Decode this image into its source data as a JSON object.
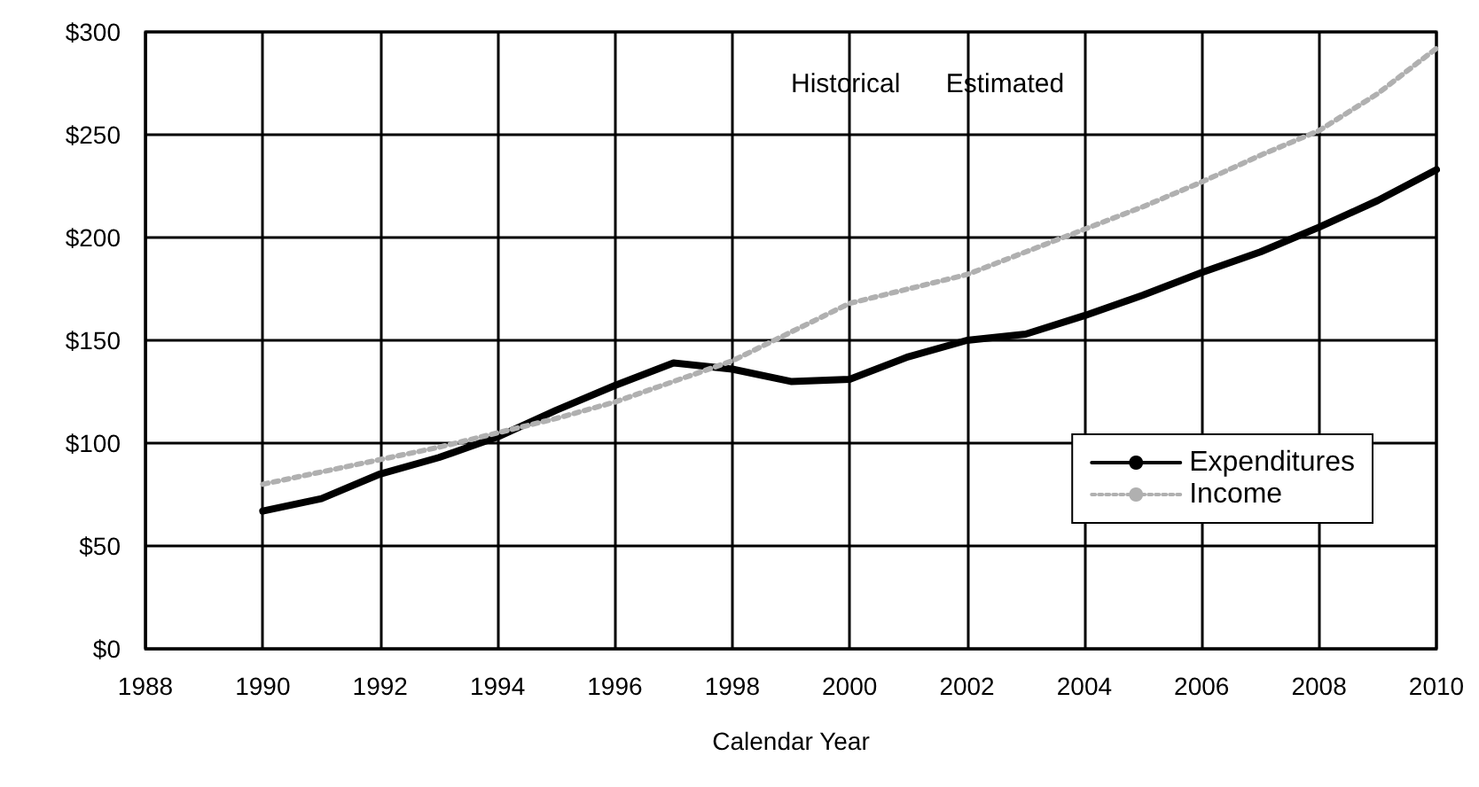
{
  "chart_data": {
    "type": "line",
    "xlabel": "Calendar Year",
    "x": [
      1990,
      1991,
      1992,
      1993,
      1994,
      1995,
      1996,
      1997,
      1998,
      1999,
      2000,
      2001,
      2002,
      2003,
      2004,
      2005,
      2006,
      2007,
      2008,
      2009,
      2010
    ],
    "series": [
      {
        "name": "Expenditures",
        "color": "#000000",
        "line_style": "solid",
        "values": [
          67,
          73,
          85,
          93,
          103,
          116,
          128,
          139,
          136,
          130,
          131,
          142,
          150,
          153,
          162,
          172,
          183,
          193,
          205,
          218,
          233
        ]
      },
      {
        "name": "Income",
        "color": "#b0b0b0",
        "line_style": "dotted",
        "values": [
          80,
          86,
          92,
          98,
          105,
          112,
          120,
          130,
          140,
          154,
          168,
          175,
          182,
          193,
          204,
          215,
          227,
          240,
          252,
          270,
          292
        ]
      }
    ],
    "xlim": [
      1988,
      2010
    ],
    "xticks": [
      1988,
      1990,
      1992,
      1994,
      1996,
      1998,
      2000,
      2002,
      2004,
      2006,
      2008,
      2010
    ],
    "ylim": [
      0,
      300
    ],
    "yticks": [
      {
        "value": 0,
        "label": "$0"
      },
      {
        "value": 50,
        "label": "$50"
      },
      {
        "value": 100,
        "label": "$100"
      },
      {
        "value": 150,
        "label": "$150"
      },
      {
        "value": 200,
        "label": "$200"
      },
      {
        "value": 250,
        "label": "$250"
      },
      {
        "value": 300,
        "label": "$300"
      }
    ],
    "annotations": [
      "Historical",
      "Estimated"
    ],
    "grid": true,
    "legend": "right",
    "marker": "none"
  }
}
